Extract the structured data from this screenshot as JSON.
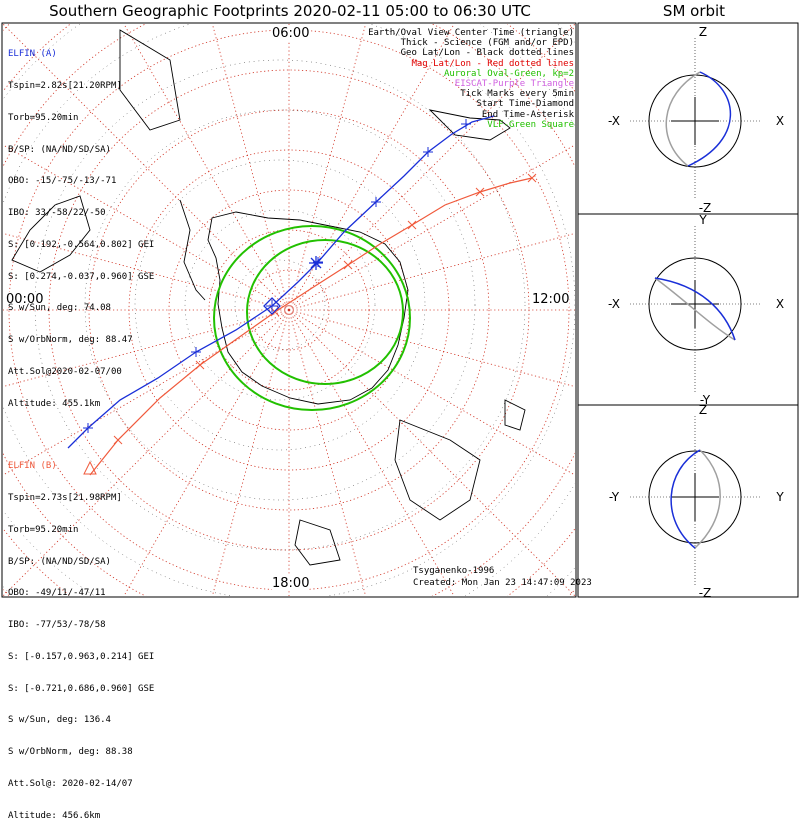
{
  "title": "Southern Geographic Footprints 2020-02-11 05:00 to 06:30 UTC",
  "sm_orbit_title": "SM orbit",
  "clock_labels": {
    "top": "06:00",
    "left": "00:00",
    "right": "12:00",
    "bottom": "18:00"
  },
  "elfin_a": {
    "header": "ELFIN (A)",
    "lines": [
      "Tspin=2.82s[21.20RPM]",
      "Torb=95.20min",
      "B/SP: (NA/ND/SD/SA)",
      "OBO: -15/-75/-13/-71",
      "IBO: 33/-58/22/-50",
      "S: [0.192,-0.564,0.802] GEI",
      "S: [0.274,-0.037,0.960] GSE",
      "S w/Sun, deg: 74.08",
      "S w/OrbNorm, deg: 88.47",
      "Att.Sol@2020-02-07/00",
      "Altitude: 455.1km"
    ],
    "color": "#1a2fd8"
  },
  "elfin_b": {
    "header": "ELFIN (B)",
    "lines": [
      "Tspin=2.73s[21.98RPM]",
      "Torb=95.20min",
      "B/SP: (NA/ND/SD/SA)",
      "OBO: -49/11/-47/11",
      "IBO: -77/53/-78/58",
      "S: [-0.157,0.963,0.214] GEI",
      "S: [-0.721,0.686,0.960] GSE",
      "S w/Sun, deg: 136.4",
      "S w/OrbNorm, deg: 88.38",
      "Att.Sol@: 2020-02-14/07",
      "Altitude: 456.6km"
    ],
    "color": "#f05a3c"
  },
  "legend": [
    {
      "text": "Earth/Oval View Center Time (triangle)",
      "color": "#000000"
    },
    {
      "text": "Thick - Science (FGM and/or EPD)",
      "color": "#000000"
    },
    {
      "text": "Geo Lat/Lon - Black dotted lines",
      "color": "#000000"
    },
    {
      "text": "Mag Lat/Lon - Red dotted lines",
      "color": "#e00000"
    },
    {
      "text": "Auroral Oval-Green, kp=2",
      "color": "#22c000"
    },
    {
      "text": "EISCAT-Purple Triangle",
      "color": "#d060e0"
    },
    {
      "text": "Tick Marks every 5min",
      "color": "#000000"
    },
    {
      "text": "Start Time-Diamond",
      "color": "#000000"
    },
    {
      "text": "End Time-Asterisk",
      "color": "#000000"
    },
    {
      "text": "VLF-Green Square",
      "color": "#22c000"
    }
  ],
  "credit": {
    "author": "Tsyganenko-1996",
    "created": "Created: Mon Jan 23 14:47:09 2023"
  },
  "sm_panels": [
    {
      "top": "Z",
      "bottom": "-Z",
      "left": "-X",
      "right": "X"
    },
    {
      "top": "Y",
      "bottom": "-Y",
      "left": "-X",
      "right": "X"
    },
    {
      "top": "Z",
      "bottom": "-Z",
      "left": "-Y",
      "right": "Y"
    }
  ],
  "colors": {
    "elfin_a": "#1a2fd8",
    "elfin_b": "#f05a3c",
    "auroral_oval": "#22c000",
    "mag_grid": "#d03020",
    "orbit_back": "#a0a0a0"
  }
}
